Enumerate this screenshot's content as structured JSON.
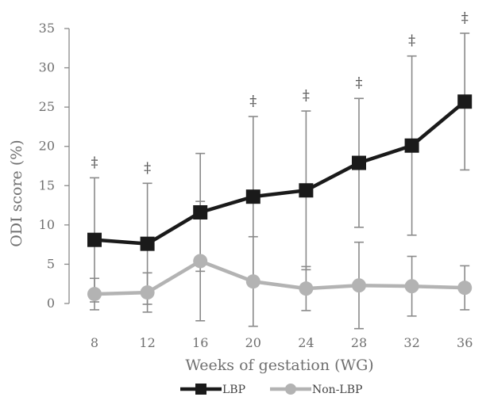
{
  "chart_data": {
    "type": "line",
    "title": "",
    "xlabel": "Weeks of gestation (WG)",
    "ylabel": "ODI score (%)",
    "categories": [
      "8",
      "12",
      "16",
      "20",
      "24",
      "28",
      "32",
      "36"
    ],
    "ylim": [
      0,
      35
    ],
    "yticks": [
      "0",
      "5",
      "10",
      "15",
      "20",
      "25",
      "30",
      "35"
    ],
    "grid": false,
    "legend_position": "bottom",
    "series": [
      {
        "name": "LBP",
        "values": [
          8.1,
          7.6,
          11.6,
          13.6,
          14.4,
          17.9,
          20.1,
          25.7
        ],
        "error": [
          7.9,
          7.7,
          7.5,
          10.2,
          10.1,
          8.2,
          11.4,
          8.7
        ],
        "color": "#1a1a1a",
        "marker": "square"
      },
      {
        "name": "Non-LBP",
        "values": [
          1.2,
          1.4,
          5.4,
          2.8,
          1.9,
          2.3,
          2.2,
          2.0
        ],
        "error": [
          2.0,
          2.5,
          7.6,
          5.7,
          2.8,
          5.5,
          3.8,
          2.8
        ],
        "color": "#b3b3b3",
        "marker": "circle"
      }
    ],
    "error_bar_color": "#8a8a8a",
    "significance_marker": "‡",
    "significant_indices": [
      0,
      1,
      3,
      4,
      5,
      6,
      7
    ]
  }
}
